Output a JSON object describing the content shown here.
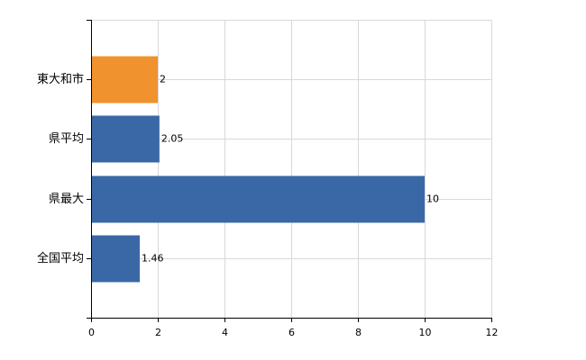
{
  "chart_data": {
    "type": "hbar",
    "categories": [
      "東大和市",
      "県平均",
      "県最大",
      "全国平均"
    ],
    "values": [
      2,
      2.05,
      10,
      1.46
    ],
    "colors": [
      "#f0922e",
      "#3a68a6",
      "#3a68a6",
      "#3a68a6"
    ],
    "xlim": [
      0,
      12
    ],
    "xticks": [
      0,
      2,
      4,
      6,
      8,
      10,
      12
    ],
    "grid": true
  }
}
